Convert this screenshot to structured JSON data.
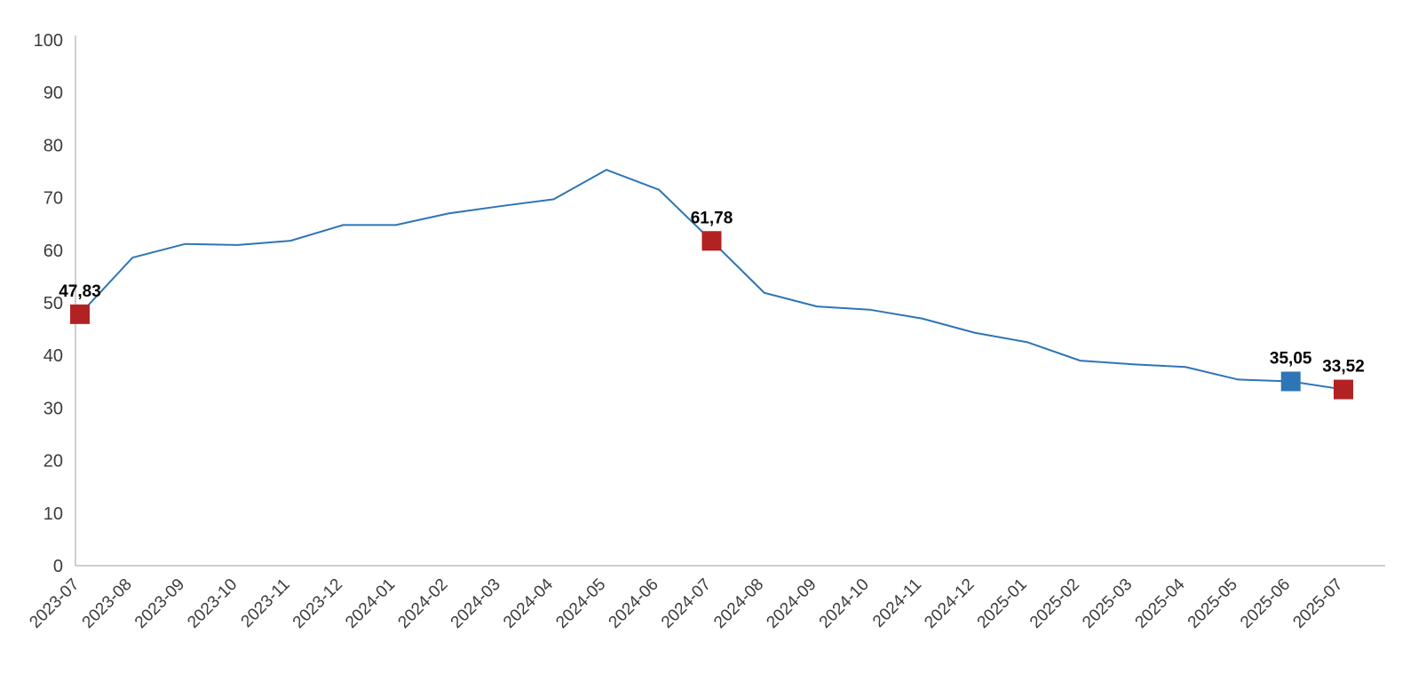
{
  "chart_data": {
    "type": "line",
    "categories": [
      "2023-07",
      "2023-08",
      "2023-09",
      "2023-10",
      "2023-11",
      "2023-12",
      "2024-01",
      "2024-02",
      "2024-03",
      "2024-04",
      "2024-05",
      "2024-06",
      "2024-07",
      "2024-08",
      "2024-09",
      "2024-10",
      "2024-11",
      "2024-12",
      "2025-01",
      "2025-02",
      "2025-03",
      "2025-04",
      "2025-05",
      "2025-06",
      "2025-07"
    ],
    "values": [
      47.83,
      58.6,
      61.2,
      61.0,
      61.8,
      64.8,
      64.8,
      67.0,
      68.4,
      69.7,
      75.3,
      71.5,
      61.78,
      51.9,
      49.3,
      48.7,
      47.0,
      44.3,
      42.5,
      39.0,
      38.3,
      37.8,
      35.4,
      35.05,
      33.52
    ],
    "title": "",
    "xlabel": "",
    "ylabel": "",
    "ylim": [
      0,
      100
    ],
    "yticks": [
      0,
      10,
      20,
      30,
      40,
      50,
      60,
      70,
      80,
      90,
      100
    ],
    "grid": false,
    "legend": "none",
    "line_color": "#2e75b6",
    "axis_color": "#bfbfbf",
    "tick_label_color": "#3c3c3c",
    "data_label_color": "#000000",
    "markers": [
      {
        "index": 0,
        "label": "47,83",
        "color": "#b22222"
      },
      {
        "index": 12,
        "label": "61,78",
        "color": "#b22222"
      },
      {
        "index": 23,
        "label": "35,05",
        "color": "#2e75b6"
      },
      {
        "index": 24,
        "label": "33,52",
        "color": "#b22222"
      }
    ]
  }
}
